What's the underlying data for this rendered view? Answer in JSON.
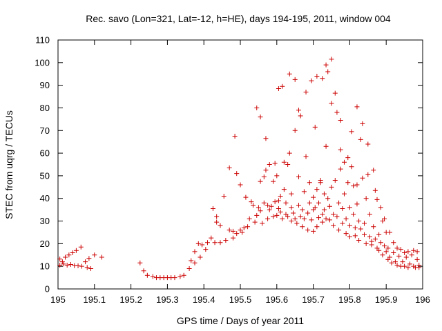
{
  "chart_data": {
    "type": "scatter",
    "title": "Rec. savo (Lon=321, Lat=-12, h=HE), days 194-195, 2011, window 004",
    "xlabel": "GPS time / Days of year 2011",
    "ylabel": "STEC from uqrg / TECUs",
    "xlim": [
      195,
      196
    ],
    "ylim": [
      0,
      110
    ],
    "xticks": [
      "195",
      "195.1",
      "195.2",
      "195.3",
      "195.4",
      "195.5",
      "195.6",
      "195.7",
      "195.8",
      "195.9",
      "196"
    ],
    "yticks": [
      "0",
      "10",
      "20",
      "30",
      "40",
      "50",
      "60",
      "70",
      "80",
      "90",
      "100",
      "110"
    ],
    "grid": false,
    "legend": "none",
    "marker": "plus",
    "color": "#cc0000",
    "points": [
      [
        195.005,
        10.5
      ],
      [
        195.005,
        13.2
      ],
      [
        195.012,
        12.0
      ],
      [
        195.015,
        11.0
      ],
      [
        195.02,
        14.0
      ],
      [
        195.025,
        10.5
      ],
      [
        195.03,
        15.0
      ],
      [
        195.035,
        10.8
      ],
      [
        195.04,
        16.0
      ],
      [
        195.045,
        10.3
      ],
      [
        195.05,
        17.0
      ],
      [
        195.055,
        10.2
      ],
      [
        195.063,
        18.5
      ],
      [
        195.065,
        10.0
      ],
      [
        195.075,
        12.0
      ],
      [
        195.08,
        9.5
      ],
      [
        195.085,
        13.5
      ],
      [
        195.09,
        9.0
      ],
      [
        195.1,
        15.0
      ],
      [
        195.12,
        14.0
      ],
      [
        195.225,
        11.5
      ],
      [
        195.235,
        8.0
      ],
      [
        195.245,
        6.0
      ],
      [
        195.26,
        5.5
      ],
      [
        195.27,
        5.0
      ],
      [
        195.28,
        5.0
      ],
      [
        195.29,
        5.0
      ],
      [
        195.3,
        5.0
      ],
      [
        195.31,
        5.0
      ],
      [
        195.32,
        5.0
      ],
      [
        195.335,
        5.5
      ],
      [
        195.345,
        6.0
      ],
      [
        195.36,
        9.0
      ],
      [
        195.365,
        12.5
      ],
      [
        195.375,
        11.5
      ],
      [
        195.375,
        16.5
      ],
      [
        195.385,
        20.0
      ],
      [
        195.39,
        14.0
      ],
      [
        195.395,
        19.5
      ],
      [
        195.405,
        17.5
      ],
      [
        195.41,
        20.5
      ],
      [
        195.42,
        22.5
      ],
      [
        195.425,
        35.5
      ],
      [
        195.43,
        20.5
      ],
      [
        195.435,
        29.5
      ],
      [
        195.435,
        32.0
      ],
      [
        195.445,
        20.5
      ],
      [
        195.445,
        28.0
      ],
      [
        195.455,
        41.0
      ],
      [
        195.46,
        21.5
      ],
      [
        195.47,
        26.0
      ],
      [
        195.47,
        53.5
      ],
      [
        195.48,
        22.5
      ],
      [
        195.48,
        25.5
      ],
      [
        195.485,
        67.5
      ],
      [
        195.49,
        24.5
      ],
      [
        195.49,
        51.0
      ],
      [
        195.5,
        26.0
      ],
      [
        195.5,
        46.0
      ],
      [
        195.505,
        25.0
      ],
      [
        195.51,
        27.0
      ],
      [
        195.515,
        40.5
      ],
      [
        195.52,
        27.5
      ],
      [
        195.525,
        31.0
      ],
      [
        195.53,
        38.5
      ],
      [
        195.535,
        37.0
      ],
      [
        195.54,
        29.5
      ],
      [
        195.545,
        80.0
      ],
      [
        195.545,
        32.5
      ],
      [
        195.55,
        36.0
      ],
      [
        195.555,
        76.0
      ],
      [
        195.555,
        47.5
      ],
      [
        195.555,
        34.5
      ],
      [
        195.56,
        29.0
      ],
      [
        195.565,
        38.0
      ],
      [
        195.565,
        49.5
      ],
      [
        195.57,
        66.5
      ],
      [
        195.57,
        52.5
      ],
      [
        195.575,
        31.0
      ],
      [
        195.575,
        37.0
      ],
      [
        195.58,
        35.0
      ],
      [
        195.58,
        55.0
      ],
      [
        195.585,
        36.5
      ],
      [
        195.59,
        47.5
      ],
      [
        195.59,
        32.0
      ],
      [
        195.595,
        38.5
      ],
      [
        195.595,
        55.5
      ],
      [
        195.6,
        32.5
      ],
      [
        195.6,
        50.0
      ],
      [
        195.605,
        88.5
      ],
      [
        195.605,
        39.0
      ],
      [
        195.605,
        35.5
      ],
      [
        195.61,
        34.0
      ],
      [
        195.61,
        41.0
      ],
      [
        195.615,
        31.0
      ],
      [
        195.615,
        89.5
      ],
      [
        195.62,
        56.0
      ],
      [
        195.62,
        44.0
      ],
      [
        195.625,
        33.0
      ],
      [
        195.625,
        38.0
      ],
      [
        195.63,
        32.0
      ],
      [
        195.63,
        55.0
      ],
      [
        195.635,
        95.0
      ],
      [
        195.635,
        60.0
      ],
      [
        195.64,
        30.0
      ],
      [
        195.64,
        36.0
      ],
      [
        195.64,
        42.0
      ],
      [
        195.645,
        33.5
      ],
      [
        195.65,
        92.5
      ],
      [
        195.65,
        70.0
      ],
      [
        195.65,
        31.0
      ],
      [
        195.655,
        29.0
      ],
      [
        195.66,
        79.0
      ],
      [
        195.66,
        49.5
      ],
      [
        195.66,
        37.0
      ],
      [
        195.665,
        32.0
      ],
      [
        195.665,
        76.5
      ],
      [
        195.67,
        27.5
      ],
      [
        195.67,
        35.0
      ],
      [
        195.675,
        31.0
      ],
      [
        195.675,
        43.0
      ],
      [
        195.68,
        87.0
      ],
      [
        195.68,
        58.5
      ],
      [
        195.685,
        33.5
      ],
      [
        195.685,
        26.0
      ],
      [
        195.69,
        38.0
      ],
      [
        195.69,
        47.0
      ],
      [
        195.695,
        92.0
      ],
      [
        195.695,
        30.5
      ],
      [
        195.7,
        25.5
      ],
      [
        195.7,
        40.5
      ],
      [
        195.7,
        35.0
      ],
      [
        195.705,
        71.5
      ],
      [
        195.705,
        36.0
      ],
      [
        195.71,
        94.0
      ],
      [
        195.71,
        27.5
      ],
      [
        195.71,
        44.0
      ],
      [
        195.715,
        31.5
      ],
      [
        195.715,
        38.0
      ],
      [
        195.72,
        47.0
      ],
      [
        195.72,
        48.0
      ],
      [
        195.725,
        93.0
      ],
      [
        195.725,
        33.0
      ],
      [
        195.725,
        29.5
      ],
      [
        195.73,
        42.0
      ],
      [
        195.73,
        35.0
      ],
      [
        195.735,
        63.0
      ],
      [
        195.735,
        99.0
      ],
      [
        195.735,
        31.0
      ],
      [
        195.74,
        96.0
      ],
      [
        195.74,
        40.0
      ],
      [
        195.745,
        36.5
      ],
      [
        195.745,
        30.5
      ],
      [
        195.75,
        101.5
      ],
      [
        195.75,
        82.0
      ],
      [
        195.75,
        45.0
      ],
      [
        195.755,
        28.0
      ],
      [
        195.755,
        33.0
      ],
      [
        195.76,
        86.5
      ],
      [
        195.76,
        48.0
      ],
      [
        195.765,
        78.0
      ],
      [
        195.765,
        32.0
      ],
      [
        195.77,
        26.0
      ],
      [
        195.77,
        38.0
      ],
      [
        195.775,
        74.5
      ],
      [
        195.775,
        61.5
      ],
      [
        195.775,
        53.0
      ],
      [
        195.78,
        29.0
      ],
      [
        195.78,
        35.5
      ],
      [
        195.785,
        56.0
      ],
      [
        195.785,
        42.0
      ],
      [
        195.79,
        24.5
      ],
      [
        195.79,
        31.0
      ],
      [
        195.795,
        58.0
      ],
      [
        195.795,
        47.0
      ],
      [
        195.8,
        36.0
      ],
      [
        195.8,
        28.0
      ],
      [
        195.8,
        23.0
      ],
      [
        195.805,
        69.5
      ],
      [
        195.805,
        54.0
      ],
      [
        195.81,
        33.0
      ],
      [
        195.81,
        45.5
      ],
      [
        195.815,
        27.0
      ],
      [
        195.815,
        23.5
      ],
      [
        195.82,
        80.5
      ],
      [
        195.82,
        46.0
      ],
      [
        195.82,
        37.5
      ],
      [
        195.825,
        30.0
      ],
      [
        195.825,
        21.5
      ],
      [
        195.83,
        66.0
      ],
      [
        195.83,
        26.5
      ],
      [
        195.835,
        73.0
      ],
      [
        195.835,
        49.0
      ],
      [
        195.84,
        29.0
      ],
      [
        195.84,
        24.0
      ],
      [
        195.845,
        40.0
      ],
      [
        195.845,
        20.0
      ],
      [
        195.85,
        64.0
      ],
      [
        195.85,
        50.5
      ],
      [
        195.855,
        33.0
      ],
      [
        195.855,
        23.0
      ],
      [
        195.86,
        21.0
      ],
      [
        195.86,
        19.5
      ],
      [
        195.865,
        52.5
      ],
      [
        195.865,
        27.5
      ],
      [
        195.87,
        43.5
      ],
      [
        195.87,
        22.0
      ],
      [
        195.875,
        39.5
      ],
      [
        195.875,
        18.0
      ],
      [
        195.88,
        24.0
      ],
      [
        195.88,
        17.0
      ],
      [
        195.885,
        36.0
      ],
      [
        195.885,
        20.5
      ],
      [
        195.89,
        30.0
      ],
      [
        195.89,
        15.0
      ],
      [
        195.895,
        31.0
      ],
      [
        195.895,
        19.0
      ],
      [
        195.9,
        25.0
      ],
      [
        195.9,
        16.5
      ],
      [
        195.905,
        13.0
      ],
      [
        195.905,
        18.0
      ],
      [
        195.91,
        25.0
      ],
      [
        195.91,
        14.0
      ],
      [
        195.915,
        11.5
      ],
      [
        195.92,
        20.5
      ],
      [
        195.92,
        16.0
      ],
      [
        195.925,
        12.0
      ],
      [
        195.93,
        10.5
      ],
      [
        195.93,
        18.0
      ],
      [
        195.935,
        14.5
      ],
      [
        195.94,
        10.0
      ],
      [
        195.94,
        17.5
      ],
      [
        195.945,
        12.0
      ],
      [
        195.95,
        16.0
      ],
      [
        195.95,
        10.0
      ],
      [
        195.955,
        14.0
      ],
      [
        195.96,
        9.5
      ],
      [
        195.96,
        16.5
      ],
      [
        195.965,
        11.0
      ],
      [
        195.97,
        15.0
      ],
      [
        195.975,
        10.0
      ],
      [
        195.975,
        17.0
      ],
      [
        195.98,
        9.5
      ],
      [
        195.985,
        16.5
      ],
      [
        195.985,
        13.0
      ],
      [
        195.99,
        10.5
      ],
      [
        195.99,
        9.5
      ]
    ]
  }
}
